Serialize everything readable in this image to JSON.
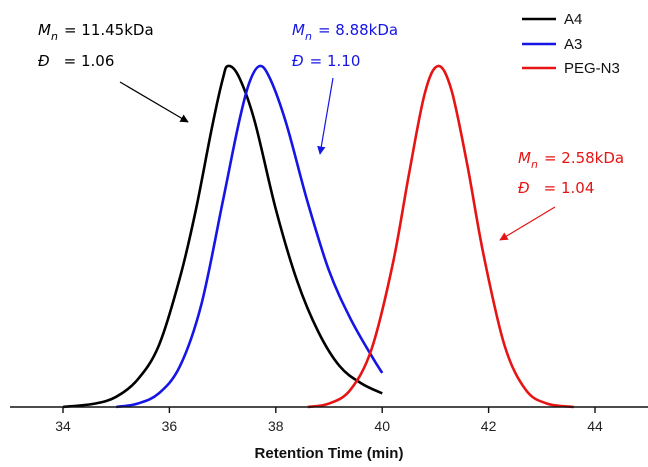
{
  "chart_data": {
    "type": "line",
    "title": "",
    "xlabel": "Retention Time (min)",
    "ylabel": "",
    "xlim": [
      33,
      45
    ],
    "ylim": [
      0,
      1.0
    ],
    "x_ticks": [
      34,
      36,
      38,
      40,
      42,
      44
    ],
    "y_axis_visible": false,
    "grid": false,
    "legend_position": "top-right",
    "series": [
      {
        "name": "A4",
        "color": "#000000",
        "peak_x": 37.1,
        "x": [
          34.0,
          34.6,
          35.0,
          35.4,
          35.8,
          36.2,
          36.5,
          36.8,
          37.0,
          37.1,
          37.3,
          37.6,
          38.0,
          38.4,
          38.8,
          39.2,
          39.6,
          40.0
        ],
        "y": [
          0.0,
          0.01,
          0.03,
          0.08,
          0.18,
          0.38,
          0.58,
          0.82,
          0.96,
          1.0,
          0.97,
          0.84,
          0.58,
          0.37,
          0.22,
          0.12,
          0.07,
          0.04
        ]
      },
      {
        "name": "A3",
        "color": "#1515e6",
        "peak_x": 37.7,
        "x": [
          35.0,
          35.4,
          35.8,
          36.2,
          36.6,
          37.0,
          37.3,
          37.5,
          37.7,
          37.9,
          38.2,
          38.6,
          39.0,
          39.4,
          39.8,
          40.0
        ],
        "y": [
          0.0,
          0.01,
          0.04,
          0.12,
          0.3,
          0.6,
          0.83,
          0.95,
          1.0,
          0.96,
          0.83,
          0.6,
          0.4,
          0.26,
          0.15,
          0.1
        ]
      },
      {
        "name": "PEG-N3",
        "color": "#e61414",
        "peak_x": 41.05,
        "x": [
          38.6,
          39.0,
          39.4,
          39.8,
          40.2,
          40.5,
          40.8,
          41.05,
          41.3,
          41.6,
          41.9,
          42.3,
          42.7,
          43.1,
          43.6
        ],
        "y": [
          0.0,
          0.01,
          0.05,
          0.17,
          0.42,
          0.68,
          0.92,
          1.0,
          0.93,
          0.71,
          0.45,
          0.18,
          0.05,
          0.01,
          0.0
        ]
      }
    ],
    "annotations": [
      {
        "series": "A4",
        "color": "#000000",
        "mn_label": "M",
        "mn_sub": "n",
        "mn_value": "= 11.45kDa",
        "d_label": "Đ",
        "d_value": "= 1.06"
      },
      {
        "series": "A3",
        "color": "#1515e6",
        "mn_label": "M",
        "mn_sub": "n",
        "mn_value": "= 8.88kDa",
        "d_label": "Đ",
        "d_value": "= 1.10"
      },
      {
        "series": "PEG-N3",
        "color": "#e61414",
        "mn_label": "M",
        "mn_sub": "n",
        "mn_value": "= 2.58kDa",
        "d_label": "Đ",
        "d_value": "= 1.04"
      }
    ]
  }
}
